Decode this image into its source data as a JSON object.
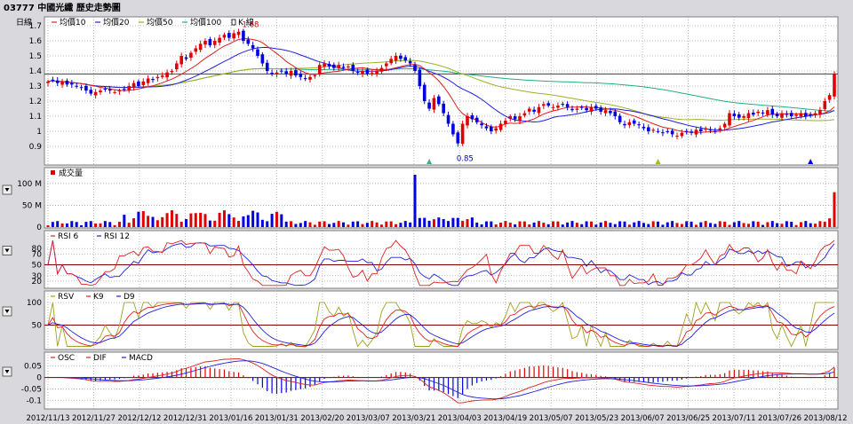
{
  "title": "03777 中國光纖  歷史走勢圖",
  "legend_main": {
    "period_label": "日線",
    "items": [
      {
        "label": "均價10",
        "color": "#e02020"
      },
      {
        "label": "均價20",
        "color": "#2020e0"
      },
      {
        "label": "均價50",
        "color": "#a0b020"
      },
      {
        "label": "均價100",
        "color": "#20b080"
      },
      {
        "label": "K 線",
        "color": "#000000",
        "icon": "candlestick-icon"
      }
    ]
  },
  "legend_volume": {
    "label": "成交量",
    "color": "#e00000"
  },
  "legend_rsi": [
    {
      "label": "RSI 6",
      "color": "#e02020"
    },
    {
      "label": "RSI 12",
      "color": "#2020e0"
    }
  ],
  "legend_kd": [
    {
      "label": "RSV",
      "color": "#a0a020"
    },
    {
      "label": "K9",
      "color": "#e02020"
    },
    {
      "label": "D9",
      "color": "#2020e0"
    }
  ],
  "legend_macd": [
    {
      "label": "OSC",
      "color": "#e02020"
    },
    {
      "label": "DIF",
      "color": "#e02020"
    },
    {
      "label": "MACD",
      "color": "#2020e0"
    }
  ],
  "colors": {
    "up": "#e00000",
    "down": "#0000e0",
    "refline": "#800000",
    "grid": "#a8a8a8"
  },
  "chart_data": [
    {
      "type": "candlestick",
      "name": "price",
      "ylim": [
        0.8,
        1.7
      ],
      "yticks": [
        "0.9",
        "1",
        "1.1",
        "1.2",
        "1.3",
        "1.4",
        "1.5",
        "1.6",
        "1.7"
      ],
      "ytick_values": [
        0.9,
        1.0,
        1.1,
        1.2,
        1.3,
        1.4,
        1.5,
        1.6,
        1.7
      ],
      "reference_line": 1.38,
      "annotations": [
        {
          "text": "1.68",
          "index": 40,
          "value": 1.68
        },
        {
          "text": "0.85",
          "index": 85,
          "value": 0.85
        }
      ],
      "closes": [
        1.33,
        1.34,
        1.32,
        1.33,
        1.31,
        1.31,
        1.3,
        1.29,
        1.27,
        1.25,
        1.26,
        1.27,
        1.28,
        1.27,
        1.26,
        1.27,
        1.28,
        1.3,
        1.32,
        1.3,
        1.33,
        1.35,
        1.34,
        1.36,
        1.37,
        1.39,
        1.4,
        1.45,
        1.5,
        1.48,
        1.52,
        1.55,
        1.58,
        1.6,
        1.57,
        1.6,
        1.62,
        1.64,
        1.62,
        1.65,
        1.66,
        1.6,
        1.58,
        1.55,
        1.5,
        1.45,
        1.4,
        1.38,
        1.39,
        1.4,
        1.38,
        1.4,
        1.37,
        1.36,
        1.35,
        1.36,
        1.37,
        1.44,
        1.45,
        1.43,
        1.42,
        1.44,
        1.42,
        1.43,
        1.4,
        1.39,
        1.4,
        1.38,
        1.39,
        1.4,
        1.42,
        1.45,
        1.48,
        1.5,
        1.48,
        1.47,
        1.45,
        1.4,
        1.3,
        1.2,
        1.15,
        1.22,
        1.18,
        1.12,
        1.05,
        0.98,
        0.92,
        1.05,
        1.1,
        1.08,
        1.06,
        1.04,
        1.02,
        1.0,
        1.02,
        1.05,
        1.07,
        1.1,
        1.08,
        1.1,
        1.12,
        1.15,
        1.13,
        1.16,
        1.18,
        1.17,
        1.16,
        1.17,
        1.18,
        1.16,
        1.14,
        1.15,
        1.16,
        1.14,
        1.16,
        1.15,
        1.13,
        1.14,
        1.12,
        1.1,
        1.06,
        1.04,
        1.06,
        1.05,
        1.04,
        1.02,
        1.0,
        1.01,
        1.0,
        0.99,
        1.0,
        0.98,
        0.97,
        0.99,
        1.0,
        0.99,
        1.01,
        1.0,
        1.02,
        1.01,
        1.0,
        1.02,
        1.05,
        1.12,
        1.1,
        1.09,
        1.1,
        1.12,
        1.11,
        1.13,
        1.12,
        1.14,
        1.11,
        1.1,
        1.12,
        1.11,
        1.1,
        1.11,
        1.12,
        1.1,
        1.11,
        1.12,
        1.14,
        1.2,
        1.24,
        1.38
      ],
      "x_tick_labels": [
        "2012/11/13",
        "2012/11/27",
        "2012/12/12",
        "2012/12/31",
        "2013/01/16",
        "2013/01/31",
        "2013/02/20",
        "2013/03/07",
        "2013/03/21",
        "2013/04/03",
        "2013/04/19",
        "2013/05/07",
        "2013/05/23",
        "2013/06/07",
        "2013/06/25",
        "2013/07/11",
        "2013/07/26",
        "2013/08/12"
      ]
    },
    {
      "type": "bar",
      "name": "volume",
      "ytick_labels": [
        "0",
        "50 M",
        "100 M"
      ],
      "ytick_values": [
        0,
        50,
        100
      ],
      "ylim": [
        0,
        120
      ],
      "peak_index": 77,
      "peak_value": 120
    },
    {
      "type": "line",
      "name": "rsi",
      "ytick_labels": [
        "20",
        "30",
        "50",
        "70",
        "80"
      ],
      "ytick_values": [
        20,
        30,
        50,
        70,
        80
      ],
      "ylim": [
        10,
        100
      ],
      "reference_line": 50
    },
    {
      "type": "line",
      "name": "kd",
      "ytick_labels": [
        "50",
        "100"
      ],
      "ytick_values": [
        50,
        100
      ],
      "ylim": [
        0,
        110
      ],
      "reference_line": 50
    },
    {
      "type": "bar",
      "name": "macd",
      "ytick_labels": [
        "0.05",
        "0",
        "-0.05",
        "-0.1"
      ],
      "ytick_values": [
        0.05,
        0,
        -0.05,
        -0.1
      ],
      "ylim": [
        -0.13,
        0.08
      ],
      "reference_line": 0
    }
  ]
}
